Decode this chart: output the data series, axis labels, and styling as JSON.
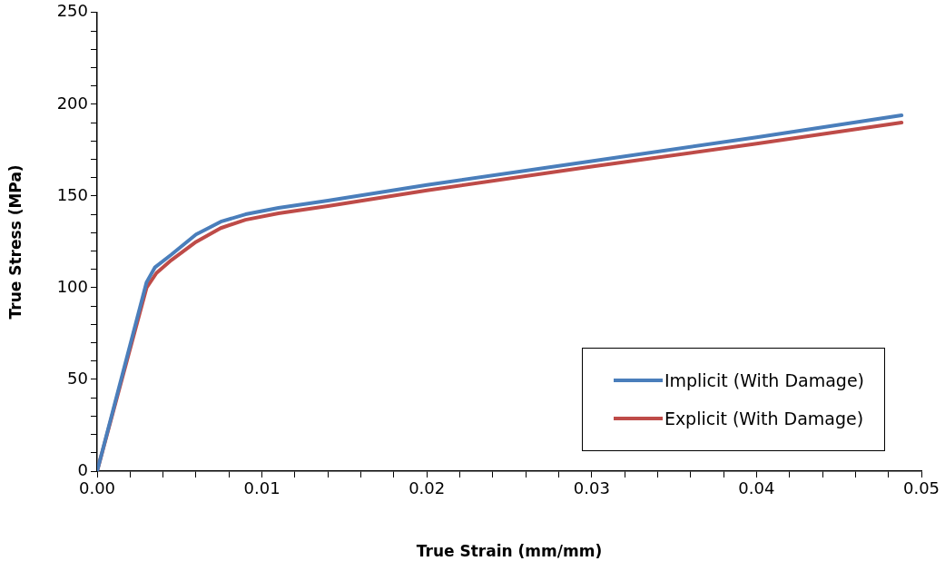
{
  "chart_data": {
    "type": "line",
    "xlabel": "True Strain (mm/mm)",
    "ylabel": "True Stress (MPa)",
    "xlim": [
      0,
      0.05
    ],
    "ylim": [
      0,
      250
    ],
    "xticks": [
      {
        "value": 0,
        "label": "0.00"
      },
      {
        "value": 0.002,
        "label": null
      },
      {
        "value": 0.004,
        "label": null
      },
      {
        "value": 0.006,
        "label": null
      },
      {
        "value": 0.008,
        "label": null
      },
      {
        "value": 0.01,
        "label": "0.01"
      },
      {
        "value": 0.012,
        "label": null
      },
      {
        "value": 0.014,
        "label": null
      },
      {
        "value": 0.016,
        "label": null
      },
      {
        "value": 0.018,
        "label": null
      },
      {
        "value": 0.02,
        "label": "0.02"
      },
      {
        "value": 0.022,
        "label": null
      },
      {
        "value": 0.024,
        "label": null
      },
      {
        "value": 0.026,
        "label": null
      },
      {
        "value": 0.028,
        "label": null
      },
      {
        "value": 0.03,
        "label": "0.03"
      },
      {
        "value": 0.032,
        "label": null
      },
      {
        "value": 0.034,
        "label": null
      },
      {
        "value": 0.036,
        "label": null
      },
      {
        "value": 0.038,
        "label": null
      },
      {
        "value": 0.04,
        "label": "0.04"
      },
      {
        "value": 0.042,
        "label": null
      },
      {
        "value": 0.044,
        "label": null
      },
      {
        "value": 0.046,
        "label": null
      },
      {
        "value": 0.048,
        "label": null
      },
      {
        "value": 0.05,
        "label": "0.05"
      }
    ],
    "yticks": [
      0,
      {
        "value": 10,
        "label": null
      },
      {
        "value": 20,
        "label": null
      },
      {
        "value": 30,
        "label": null
      },
      {
        "value": 40,
        "label": null
      },
      50,
      {
        "value": 60,
        "label": null
      },
      {
        "value": 70,
        "label": null
      },
      {
        "value": 80,
        "label": null
      },
      {
        "value": 90,
        "label": null
      },
      100,
      {
        "value": 110,
        "label": null
      },
      {
        "value": 120,
        "label": null
      },
      {
        "value": 130,
        "label": null
      },
      {
        "value": 140,
        "label": null
      },
      150,
      {
        "value": 160,
        "label": null
      },
      {
        "value": 170,
        "label": null
      },
      {
        "value": 180,
        "label": null
      },
      {
        "value": 190,
        "label": null
      },
      200,
      {
        "value": 210,
        "label": null
      },
      {
        "value": 220,
        "label": null
      },
      {
        "value": 230,
        "label": null
      },
      {
        "value": 240,
        "label": null
      },
      250
    ],
    "grid": false,
    "legend": "bottom right",
    "marker": "none",
    "line_style": "solid",
    "series": [
      {
        "name": "Implicit (With Damage)",
        "color": "#4a7ebb",
        "x": [
          0,
          0.003,
          0.0035,
          0.0045,
          0.006,
          0.0075,
          0.009,
          0.011,
          0.014,
          0.02,
          0.03,
          0.04,
          0.0488
        ],
        "values": [
          0,
          103,
          111,
          118,
          129,
          136,
          140,
          143.5,
          147.5,
          156,
          169,
          182,
          194
        ]
      },
      {
        "name": "Explicit (With Damage)",
        "color": "#be4b48",
        "x": [
          0,
          0.003,
          0.0036,
          0.0045,
          0.006,
          0.0075,
          0.009,
          0.011,
          0.014,
          0.02,
          0.03,
          0.04,
          0.0488
        ],
        "values": [
          0,
          100,
          108,
          115,
          125,
          132.5,
          137,
          140.5,
          144.5,
          153,
          166,
          178.5,
          190
        ]
      }
    ]
  }
}
